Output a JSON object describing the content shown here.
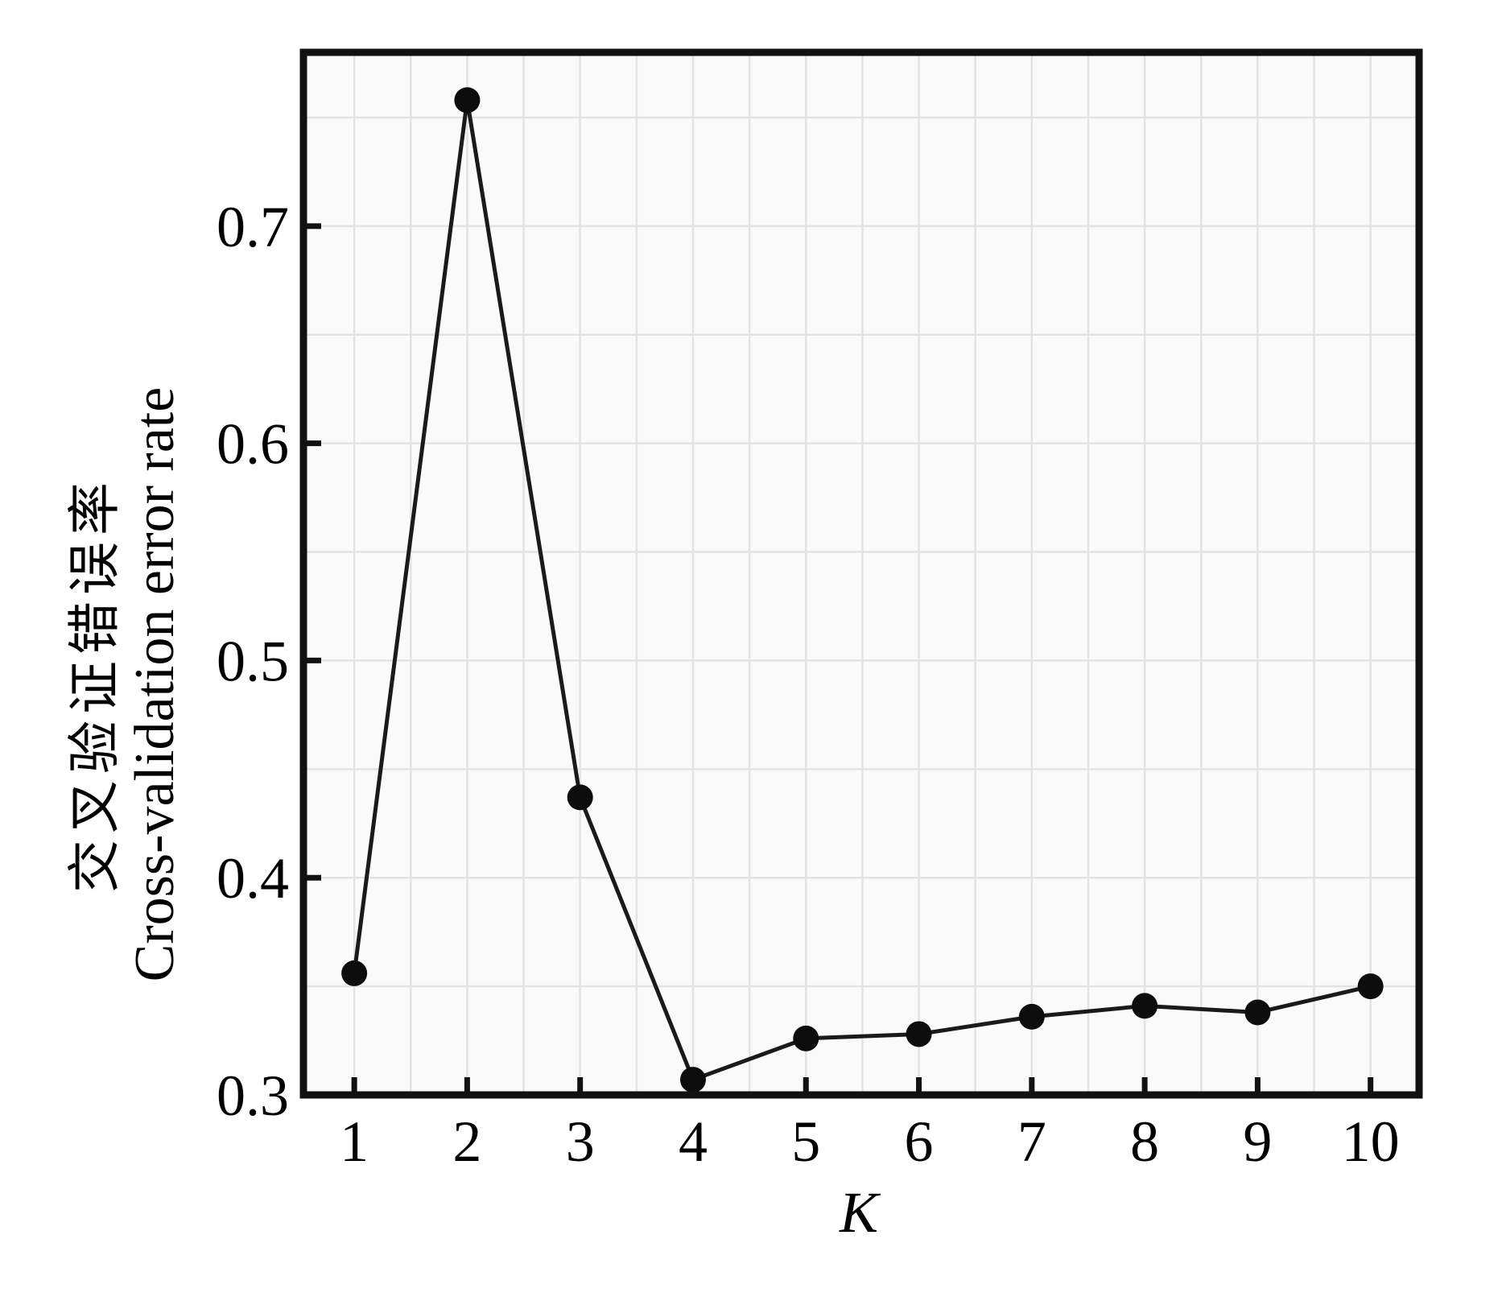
{
  "figure": {
    "background": "#ffffff",
    "plot_background": "#fafafa",
    "border_color": "#111111",
    "grid_color": "#e3e3e3",
    "line_color": "#1a1a1a",
    "point_color": "#0d0d0d",
    "text_color": "#000000"
  },
  "chart_data": {
    "type": "line",
    "title": "",
    "xlabel": "K",
    "ylabel_zh": "交叉验证错误率",
    "ylabel_en": "Cross-validation error rate",
    "series": [
      {
        "name": "cross-validation-error-rate",
        "x": [
          1,
          2,
          3,
          4,
          5,
          6,
          7,
          8,
          9,
          10
        ],
        "y": [
          0.356,
          0.758,
          0.437,
          0.307,
          0.326,
          0.328,
          0.336,
          0.341,
          0.338,
          0.35
        ]
      }
    ],
    "xlim": [
      0.55,
      10.43
    ],
    "ylim": [
      0.3,
      0.78
    ],
    "x_tick_values": [
      1,
      2,
      3,
      4,
      5,
      6,
      7,
      8,
      9,
      10
    ],
    "x_tick_labels": [
      "1",
      "2",
      "3",
      "4",
      "5",
      "6",
      "7",
      "8",
      "9",
      "10"
    ],
    "y_tick_values": [
      0.3,
      0.4,
      0.5,
      0.6,
      0.7
    ],
    "y_tick_labels": [
      "0.3",
      "0.4",
      "0.5",
      "0.6",
      "0.7"
    ],
    "y_tick_marks": [
      0.4,
      0.5,
      0.6,
      0.7
    ],
    "x_grid_step": 0.5,
    "y_grid_step": 0.05,
    "grid": "on",
    "legend_position": "none",
    "marker": "circle"
  }
}
